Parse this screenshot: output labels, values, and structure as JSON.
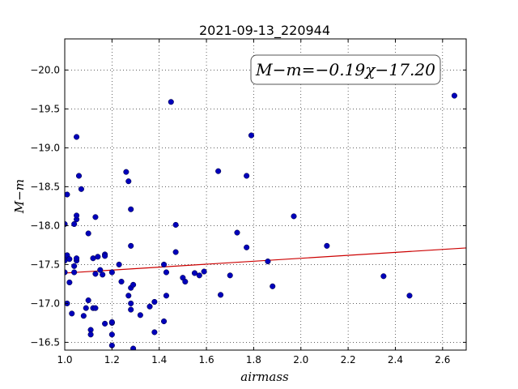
{
  "chart_data": {
    "type": "scatter",
    "title": "2021-09-13_220944",
    "xlabel": "airmass",
    "ylabel": "M−m",
    "xlim": [
      1.0,
      2.7
    ],
    "ylim": [
      -20.4,
      -16.4
    ],
    "y_inverted": true,
    "grid": true,
    "x_ticks": [
      "1.0",
      "1.2",
      "1.4",
      "1.6",
      "1.8",
      "2.0",
      "2.2",
      "2.4",
      "2.6"
    ],
    "y_ticks": [
      "−16.5",
      "−17.0",
      "−17.5",
      "−18.0",
      "−18.5",
      "−19.0",
      "−19.5",
      "−20.0"
    ],
    "annotation": "M−m=−0.19χ−17.20",
    "fit_line": {
      "slope": -0.19,
      "intercept": -17.2,
      "color": "#cc0000"
    },
    "point_color": "#0000bb",
    "points": [
      [
        1.0,
        -17.4
      ],
      [
        1.0,
        -17.55
      ],
      [
        1.0,
        -17.6
      ],
      [
        1.0,
        -18.02
      ],
      [
        1.01,
        -17.62
      ],
      [
        1.01,
        -17.0
      ],
      [
        1.01,
        -18.4
      ],
      [
        1.02,
        -17.27
      ],
      [
        1.02,
        -17.57
      ],
      [
        1.03,
        -16.87
      ],
      [
        1.04,
        -17.48
      ],
      [
        1.04,
        -17.4
      ],
      [
        1.04,
        -18.02
      ],
      [
        1.05,
        -17.55
      ],
      [
        1.05,
        -17.58
      ],
      [
        1.05,
        -18.08
      ],
      [
        1.05,
        -18.13
      ],
      [
        1.05,
        -19.14
      ],
      [
        1.06,
        -18.64
      ],
      [
        1.07,
        -18.47
      ],
      [
        1.08,
        -16.84
      ],
      [
        1.09,
        -16.94
      ],
      [
        1.1,
        -17.04
      ],
      [
        1.1,
        -17.9
      ],
      [
        1.11,
        -16.66
      ],
      [
        1.11,
        -16.6
      ],
      [
        1.12,
        -16.94
      ],
      [
        1.12,
        -17.58
      ],
      [
        1.13,
        -16.94
      ],
      [
        1.13,
        -17.38
      ],
      [
        1.13,
        -18.11
      ],
      [
        1.14,
        -17.6
      ],
      [
        1.15,
        -17.43
      ],
      [
        1.16,
        -17.37
      ],
      [
        1.17,
        -17.63
      ],
      [
        1.17,
        -17.61
      ],
      [
        1.17,
        -16.74
      ],
      [
        1.2,
        -16.46
      ],
      [
        1.2,
        -16.6
      ],
      [
        1.2,
        -16.75
      ],
      [
        1.2,
        -16.76
      ],
      [
        1.2,
        -17.4
      ],
      [
        1.23,
        -17.5
      ],
      [
        1.24,
        -17.28
      ],
      [
        1.26,
        -18.69
      ],
      [
        1.27,
        -18.57
      ],
      [
        1.27,
        -17.1
      ],
      [
        1.28,
        -16.92
      ],
      [
        1.28,
        -17.0
      ],
      [
        1.28,
        -17.2
      ],
      [
        1.28,
        -17.74
      ],
      [
        1.28,
        -18.21
      ],
      [
        1.29,
        -16.42
      ],
      [
        1.29,
        -17.24
      ],
      [
        1.32,
        -16.85
      ],
      [
        1.36,
        -16.96
      ],
      [
        1.38,
        -16.63
      ],
      [
        1.38,
        -17.02
      ],
      [
        1.42,
        -17.5
      ],
      [
        1.42,
        -16.77
      ],
      [
        1.43,
        -17.1
      ],
      [
        1.43,
        -17.4
      ],
      [
        1.45,
        -19.59
      ],
      [
        1.47,
        -17.66
      ],
      [
        1.47,
        -18.01
      ],
      [
        1.5,
        -17.33
      ],
      [
        1.51,
        -17.28
      ],
      [
        1.55,
        -17.39
      ],
      [
        1.57,
        -17.36
      ],
      [
        1.59,
        -17.41
      ],
      [
        1.65,
        -18.7
      ],
      [
        1.66,
        -17.11
      ],
      [
        1.7,
        -17.36
      ],
      [
        1.73,
        -17.91
      ],
      [
        1.77,
        -17.72
      ],
      [
        1.77,
        -18.64
      ],
      [
        1.79,
        -19.16
      ],
      [
        1.86,
        -17.54
      ],
      [
        1.88,
        -17.22
      ],
      [
        1.97,
        -18.12
      ],
      [
        2.11,
        -17.74
      ],
      [
        2.35,
        -17.35
      ],
      [
        2.46,
        -17.1
      ],
      [
        2.65,
        -19.67
      ]
    ]
  }
}
